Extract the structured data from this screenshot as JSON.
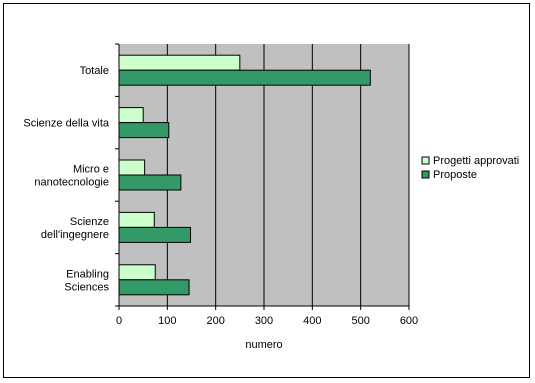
{
  "chart_data": {
    "type": "bar",
    "orientation": "horizontal",
    "categories": [
      "Totale",
      "Scienze della vita",
      "Micro e nanotecnologie",
      "Scienze dell'ingegnere",
      "Enabling Sciences"
    ],
    "category_label_lines": [
      [
        "Totale"
      ],
      [
        "Scienze della vita"
      ],
      [
        "Micro e",
        "nanotecnologie"
      ],
      [
        "Scienze",
        "dell'ingegnere"
      ],
      [
        "Enabling",
        "Sciences"
      ]
    ],
    "series": [
      {
        "name": "Progetti approvati",
        "values": [
          250,
          50,
          53,
          73,
          75
        ],
        "color": "#ccffcc"
      },
      {
        "name": "Proposte",
        "values": [
          520,
          103,
          128,
          148,
          145
        ],
        "color": "#339966"
      }
    ],
    "xlabel": "numero",
    "xlim": [
      0,
      600
    ],
    "xticks": [
      0,
      100,
      200,
      300,
      400,
      500,
      600
    ],
    "grid": true,
    "plot_background": "#c0c0c0",
    "legend_position": "right"
  }
}
